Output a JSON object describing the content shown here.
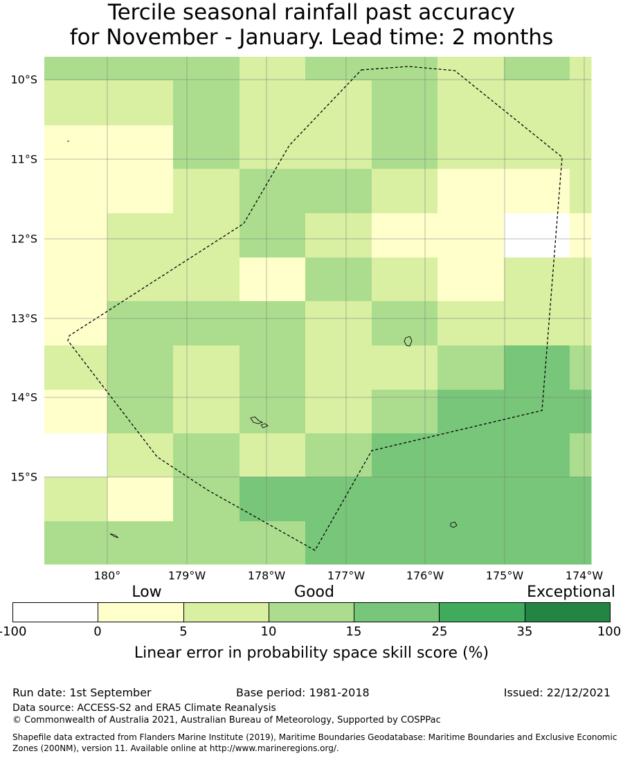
{
  "title": {
    "line1": "Tercile seasonal rainfall past accuracy",
    "line2": "for November - January. Lead time: 2 months"
  },
  "map": {
    "lat_labels": [
      "10°S",
      "11°S",
      "12°S",
      "13°S",
      "14°S",
      "15°S"
    ],
    "lon_labels": [
      "180°",
      "179°W",
      "178°W",
      "177°W",
      "176°W",
      "175°W",
      "174°W"
    ],
    "grid_colors": [
      [
        "#acdd8e",
        "#acdd8e",
        "#acdd8e",
        "#d9efa2",
        "#acdd8e",
        "#acdd8e",
        "#d9efa2",
        "#acdd8e",
        "#d9efa2"
      ],
      [
        "#d9efa2",
        "#d9efa2",
        "#acdd8e",
        "#d9efa2",
        "#d9efa2",
        "#acdd8e",
        "#d9efa2",
        "#d9efa2",
        "#d9efa2"
      ],
      [
        "#ffffcc",
        "#ffffcc",
        "#acdd8e",
        "#d9efa2",
        "#d9efa2",
        "#acdd8e",
        "#d9efa2",
        "#d9efa2",
        "#d9efa2"
      ],
      [
        "#ffffcc",
        "#ffffcc",
        "#d9efa2",
        "#acdd8e",
        "#acdd8e",
        "#d9efa2",
        "#ffffcc",
        "#ffffcc",
        "#d9efa2"
      ],
      [
        "#ffffcc",
        "#d9efa2",
        "#d9efa2",
        "#acdd8e",
        "#d9efa2",
        "#ffffcc",
        "#ffffcc",
        "#ffffff",
        "#ffffcc"
      ],
      [
        "#ffffcc",
        "#d9efa2",
        "#d9efa2",
        "#ffffcc",
        "#acdd8e",
        "#d9efa2",
        "#ffffcc",
        "#d9efa2",
        "#d9efa2"
      ],
      [
        "#ffffcc",
        "#acdd8e",
        "#acdd8e",
        "#acdd8e",
        "#d9efa2",
        "#acdd8e",
        "#d9efa2",
        "#d9efa2",
        "#d9efa2"
      ],
      [
        "#d9efa2",
        "#acdd8e",
        "#d9efa2",
        "#acdd8e",
        "#d9efa2",
        "#d9efa2",
        "#acdd8e",
        "#78c679",
        "#acdd8e"
      ],
      [
        "#ffffcc",
        "#acdd8e",
        "#d9efa2",
        "#acdd8e",
        "#d9efa2",
        "#acdd8e",
        "#78c679",
        "#78c679",
        "#78c679"
      ],
      [
        "#ffffff",
        "#d9efa2",
        "#acdd8e",
        "#d9efa2",
        "#acdd8e",
        "#78c679",
        "#78c679",
        "#78c679",
        "#acdd8e"
      ],
      [
        "#d9efa2",
        "#ffffcc",
        "#acdd8e",
        "#78c679",
        "#78c679",
        "#78c679",
        "#78c679",
        "#78c679",
        "#78c679"
      ],
      [
        "#acdd8e",
        "#acdd8e",
        "#acdd8e",
        "#acdd8e",
        "#78c679",
        "#78c679",
        "#78c679",
        "#78c679",
        "#78c679"
      ]
    ]
  },
  "colorbar": {
    "categories": [
      "Low",
      "Good",
      "Exceptional"
    ],
    "ticks": [
      "-100",
      "0",
      "5",
      "10",
      "15",
      "25",
      "35",
      "100"
    ],
    "colors": [
      "#ffffff",
      "#ffffcc",
      "#d9efa2",
      "#acdd8e",
      "#78c679",
      "#41ab5d",
      "#238443"
    ],
    "label": "Linear error in probability space skill score (%)"
  },
  "footer": {
    "run_date": "Run date: 1st September",
    "base_period": "Base period: 1981-2018",
    "issued": "Issued: 22/12/2021",
    "data_source": "Data source: ACCESS-S2 and ERA5 Climate Reanalysis",
    "copyright": "© Commonwealth of Australia 2021, Australian Bureau of Meteorology, Supported by COSPPac",
    "shapefile": "Shapefile data extracted from Flanders Marine Institute (2019), Maritime Boundaries Geodatabase: Maritime Boundaries and Exclusive Economic Zones (200NM), version 11. Available online at http://www.marineregions.org/."
  }
}
